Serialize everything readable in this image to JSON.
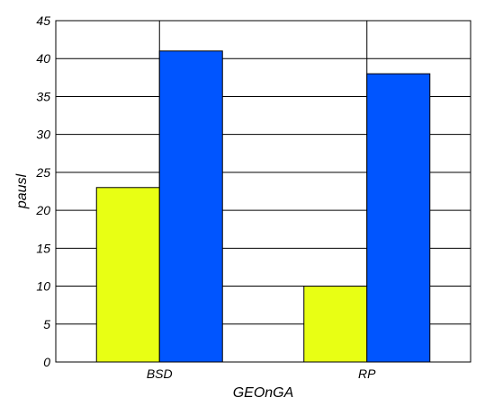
{
  "chart_data": {
    "type": "bar",
    "categories": [
      "BSD",
      "RP"
    ],
    "series": [
      {
        "values": [
          23,
          10
        ],
        "color": "#e8ff14"
      },
      {
        "values": [
          41,
          38
        ],
        "color": "#0055ff"
      }
    ],
    "title": "",
    "xlabel": "GEOnGA",
    "ylabel": "pausl",
    "ylim": [
      0,
      45
    ],
    "yticks": [
      0,
      5,
      10,
      15,
      20,
      25,
      30,
      35,
      40,
      45
    ],
    "grid": true,
    "legend": "none"
  }
}
